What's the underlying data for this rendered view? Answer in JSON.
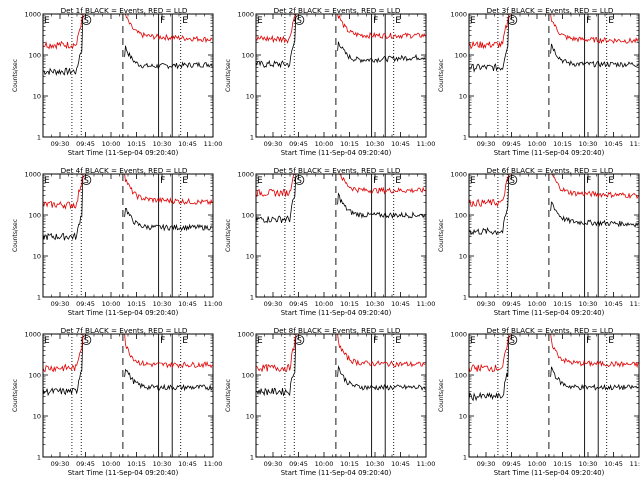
{
  "common": {
    "ylabel": "Counts/sec",
    "xlabel": "Start Time (11-Sep-04 09:20:40)",
    "x_ticks": [
      "09:30",
      "09:45",
      "10:00",
      "10:15",
      "10:30",
      "10:45",
      "11:00"
    ],
    "y_ticks": [
      "1",
      "10",
      "100",
      "1000"
    ],
    "markers": {
      "E": "E",
      "S": "S",
      "F": "F"
    },
    "colors": {
      "events": "#000000",
      "lld": "#e00000"
    },
    "legend_text": "BLACK = Events, RED = LLD"
  },
  "chart_data": [
    {
      "type": "line",
      "title": "Det 1f BLACK = Events, RED = LLD",
      "xlabel": "Start Time (11-Sep-04 09:20:40)",
      "ylabel": "Counts/sec",
      "x_range": [
        "09:20",
        "11:00"
      ],
      "ylim": [
        1,
        1000
      ],
      "y_scale": "log",
      "series": [
        {
          "name": "Events",
          "color": "#000000",
          "level": [
            40,
            50,
            60
          ]
        },
        {
          "name": "LLD",
          "color": "#e00000",
          "level": [
            180,
            300,
            240
          ]
        }
      ]
    },
    {
      "type": "line",
      "title": "Det 2f BLACK = Events, RED = LLD",
      "xlabel": "Start Time (11-Sep-04 09:20:40)",
      "ylabel": "Counts/sec",
      "x_range": [
        "09:20",
        "11:00"
      ],
      "ylim": [
        1,
        1000
      ],
      "y_scale": "log",
      "series": [
        {
          "name": "Events",
          "color": "#000000",
          "level": [
            60,
            70,
            90
          ]
        },
        {
          "name": "LLD",
          "color": "#e00000",
          "level": [
            250,
            300,
            300
          ]
        }
      ]
    },
    {
      "type": "line",
      "title": "Det 3f BLACK = Events, RED = LLD",
      "xlabel": "Start Time (11-Sep-04 09:20:40)",
      "ylabel": "Counts/sec",
      "x_range": [
        "09:20",
        "11:00"
      ],
      "ylim": [
        1,
        1000
      ],
      "y_scale": "log",
      "series": [
        {
          "name": "Events",
          "color": "#000000",
          "level": [
            50,
            60,
            60
          ]
        },
        {
          "name": "LLD",
          "color": "#e00000",
          "level": [
            180,
            250,
            220
          ]
        }
      ]
    },
    {
      "type": "line",
      "title": "Det 4f BLACK = Events, RED = LLD",
      "xlabel": "Start Time (11-Sep-04 09:20:40)",
      "ylabel": "Counts/sec",
      "x_range": [
        "09:20",
        "11:00"
      ],
      "ylim": [
        1,
        1000
      ],
      "y_scale": "log",
      "series": [
        {
          "name": "Events",
          "color": "#000000",
          "level": [
            30,
            50,
            50
          ]
        },
        {
          "name": "LLD",
          "color": "#e00000",
          "level": [
            180,
            250,
            200
          ]
        }
      ]
    },
    {
      "type": "line",
      "title": "Det 5f BLACK = Events, RED = LLD",
      "xlabel": "Start Time (11-Sep-04 09:20:40)",
      "ylabel": "Counts/sec",
      "x_range": [
        "09:20",
        "11:00"
      ],
      "ylim": [
        1,
        1000
      ],
      "y_scale": "log",
      "series": [
        {
          "name": "Events",
          "color": "#000000",
          "level": [
            80,
            100,
            100
          ]
        },
        {
          "name": "LLD",
          "color": "#e00000",
          "level": [
            350,
            400,
            400
          ]
        }
      ]
    },
    {
      "type": "line",
      "title": "Det 6f BLACK = Events, RED = LLD",
      "xlabel": "Start Time (11-Sep-04 09:20:40)",
      "ylabel": "Counts/sec",
      "x_range": [
        "09:20",
        "11:00"
      ],
      "ylim": [
        1,
        1000
      ],
      "y_scale": "log",
      "series": [
        {
          "name": "Events",
          "color": "#000000",
          "level": [
            40,
            70,
            60
          ]
        },
        {
          "name": "LLD",
          "color": "#e00000",
          "level": [
            200,
            350,
            300
          ]
        }
      ]
    },
    {
      "type": "line",
      "title": "Det 7f BLACK = Events, RED = LLD",
      "xlabel": "Start Time (11-Sep-04 09:20:40)",
      "ylabel": "Counts/sec",
      "x_range": [
        "09:20",
        "11:00"
      ],
      "ylim": [
        1,
        1000
      ],
      "y_scale": "log",
      "series": [
        {
          "name": "Events",
          "color": "#000000",
          "level": [
            40,
            50,
            50
          ]
        },
        {
          "name": "LLD",
          "color": "#e00000",
          "level": [
            150,
            180,
            180
          ]
        }
      ]
    },
    {
      "type": "line",
      "title": "Det 8f BLACK = Events, RED = LLD",
      "xlabel": "Start Time (11-Sep-04 09:20:40)",
      "ylabel": "Counts/sec",
      "x_range": [
        "09:20",
        "11:00"
      ],
      "ylim": [
        1,
        1000
      ],
      "y_scale": "log",
      "series": [
        {
          "name": "Events",
          "color": "#000000",
          "level": [
            40,
            50,
            50
          ]
        },
        {
          "name": "LLD",
          "color": "#e00000",
          "level": [
            150,
            200,
            180
          ]
        }
      ]
    },
    {
      "type": "line",
      "title": "Det 9f BLACK = Events, RED = LLD",
      "xlabel": "Start Time (11-Sep-04 09:20:40)",
      "ylabel": "Counts/sec",
      "x_range": [
        "09:20",
        "11:00"
      ],
      "ylim": [
        1,
        1000
      ],
      "y_scale": "log",
      "series": [
        {
          "name": "Events",
          "color": "#000000",
          "level": [
            30,
            50,
            50
          ]
        },
        {
          "name": "LLD",
          "color": "#e00000",
          "level": [
            150,
            200,
            180
          ]
        }
      ]
    }
  ]
}
